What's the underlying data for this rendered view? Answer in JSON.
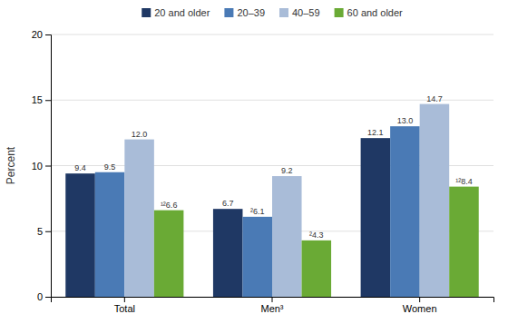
{
  "chart_data": {
    "type": "bar",
    "categories": [
      "Total",
      "Men³",
      "Women"
    ],
    "series": [
      {
        "name": "20 and older",
        "color": "#1f3864",
        "values": [
          9.4,
          6.7,
          12.1
        ],
        "value_labels": [
          "9.4",
          "6.7",
          "12.1"
        ]
      },
      {
        "name": "20–39",
        "color": "#4a7ab5",
        "values": [
          9.5,
          6.1,
          13.0
        ],
        "value_labels": [
          "9.5",
          "²6.1",
          "13.0"
        ]
      },
      {
        "name": "40–59",
        "color": "#a9bcd8",
        "values": [
          12.0,
          9.2,
          14.7
        ],
        "value_labels": [
          "12.0",
          "9.2",
          "14.7"
        ]
      },
      {
        "name": "60 and older",
        "color": "#6aaa35",
        "values": [
          6.6,
          4.3,
          8.4
        ],
        "value_labels": [
          "¹²6.6",
          "²4.3",
          "¹²8.4"
        ]
      }
    ],
    "y_label": "Percent",
    "ylim": [
      0,
      20
    ],
    "yticks": [
      0,
      5,
      10,
      15,
      20
    ],
    "grid": true,
    "legend": "top",
    "data_labels": true
  }
}
